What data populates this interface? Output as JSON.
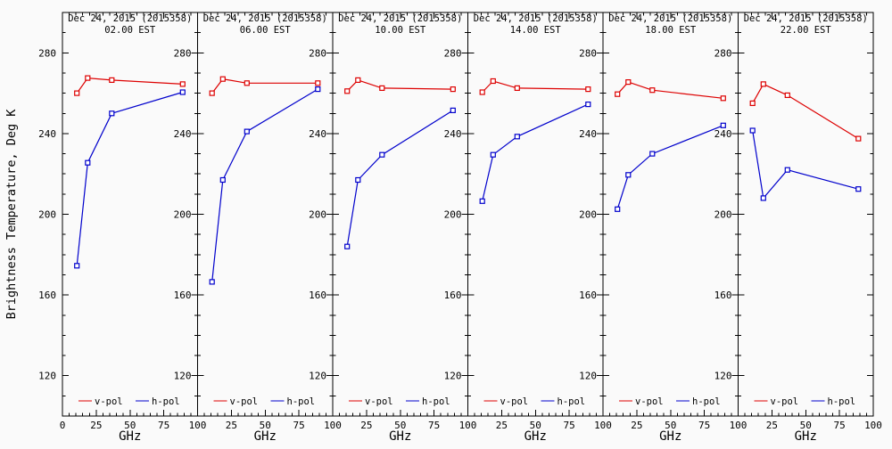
{
  "figure": {
    "background": "#fafafa",
    "axis_color": "#000000",
    "text_color": "#000000",
    "y_axis_title": "Brightness Temperature, Deg K",
    "x_axis_title": "GHz",
    "legend": {
      "v_label": "v-pol",
      "h_label": "h-pol"
    },
    "colors": {
      "v_pol": "#dd0000",
      "h_pol": "#0000cc"
    }
  },
  "chart_data": {
    "type": "line",
    "x_frequencies_ghz": [
      10.7,
      18.7,
      36.5,
      89
    ],
    "xlim": [
      0,
      100
    ],
    "ylim": [
      100,
      300
    ],
    "xticks": [
      0,
      25,
      50,
      75,
      100
    ],
    "yticks": [
      120,
      160,
      200,
      240,
      280
    ],
    "x_minor_step": 5,
    "y_minor_step": 10,
    "xlabel": "GHz",
    "ylabel": "Brightness Temperature, Deg K",
    "panels": [
      {
        "title": "Dec 24, 2015 (2015358)",
        "subtitle": "02.00 EST",
        "series": [
          {
            "name": "v-pol",
            "color": "#dd0000",
            "values": [
              260,
              267.5,
              266.5,
              264.5
            ]
          },
          {
            "name": "h-pol",
            "color": "#0000cc",
            "values": [
              174.5,
              225.5,
              250,
              260.5
            ]
          }
        ]
      },
      {
        "title": "Dec 24, 2015 (2015358)",
        "subtitle": "06.00 EST",
        "series": [
          {
            "name": "v-pol",
            "color": "#dd0000",
            "values": [
              260,
              267,
              265,
              265
            ]
          },
          {
            "name": "h-pol",
            "color": "#0000cc",
            "values": [
              166.5,
              217,
              241,
              262
            ]
          }
        ]
      },
      {
        "title": "Dec 24, 2015 (2015358)",
        "subtitle": "10.00 EST",
        "series": [
          {
            "name": "v-pol",
            "color": "#dd0000",
            "values": [
              261,
              266.5,
              262.5,
              262
            ]
          },
          {
            "name": "h-pol",
            "color": "#0000cc",
            "values": [
              184,
              217,
              229.5,
              251.5
            ]
          }
        ]
      },
      {
        "title": "Dec 24, 2015 (2015358)",
        "subtitle": "14.00 EST",
        "series": [
          {
            "name": "v-pol",
            "color": "#dd0000",
            "values": [
              260.5,
              266,
              262.5,
              262
            ]
          },
          {
            "name": "h-pol",
            "color": "#0000cc",
            "values": [
              206.5,
              229.5,
              238.5,
              254.5
            ]
          }
        ]
      },
      {
        "title": "Dec 24, 2015 (2015358)",
        "subtitle": "18.00 EST",
        "series": [
          {
            "name": "v-pol",
            "color": "#dd0000",
            "values": [
              259.5,
              265.5,
              261.5,
              257.5
            ]
          },
          {
            "name": "h-pol",
            "color": "#0000cc",
            "values": [
              202.5,
              219.5,
              230,
              244
            ]
          }
        ]
      },
      {
        "title": "Dec 24, 2015 (2015358)",
        "subtitle": "22.00 EST",
        "series": [
          {
            "name": "v-pol",
            "color": "#dd0000",
            "values": [
              255,
              264.5,
              259,
              237.5
            ]
          },
          {
            "name": "h-pol",
            "color": "#0000cc",
            "values": [
              241.5,
              208,
              222,
              212.5
            ]
          }
        ]
      }
    ]
  }
}
